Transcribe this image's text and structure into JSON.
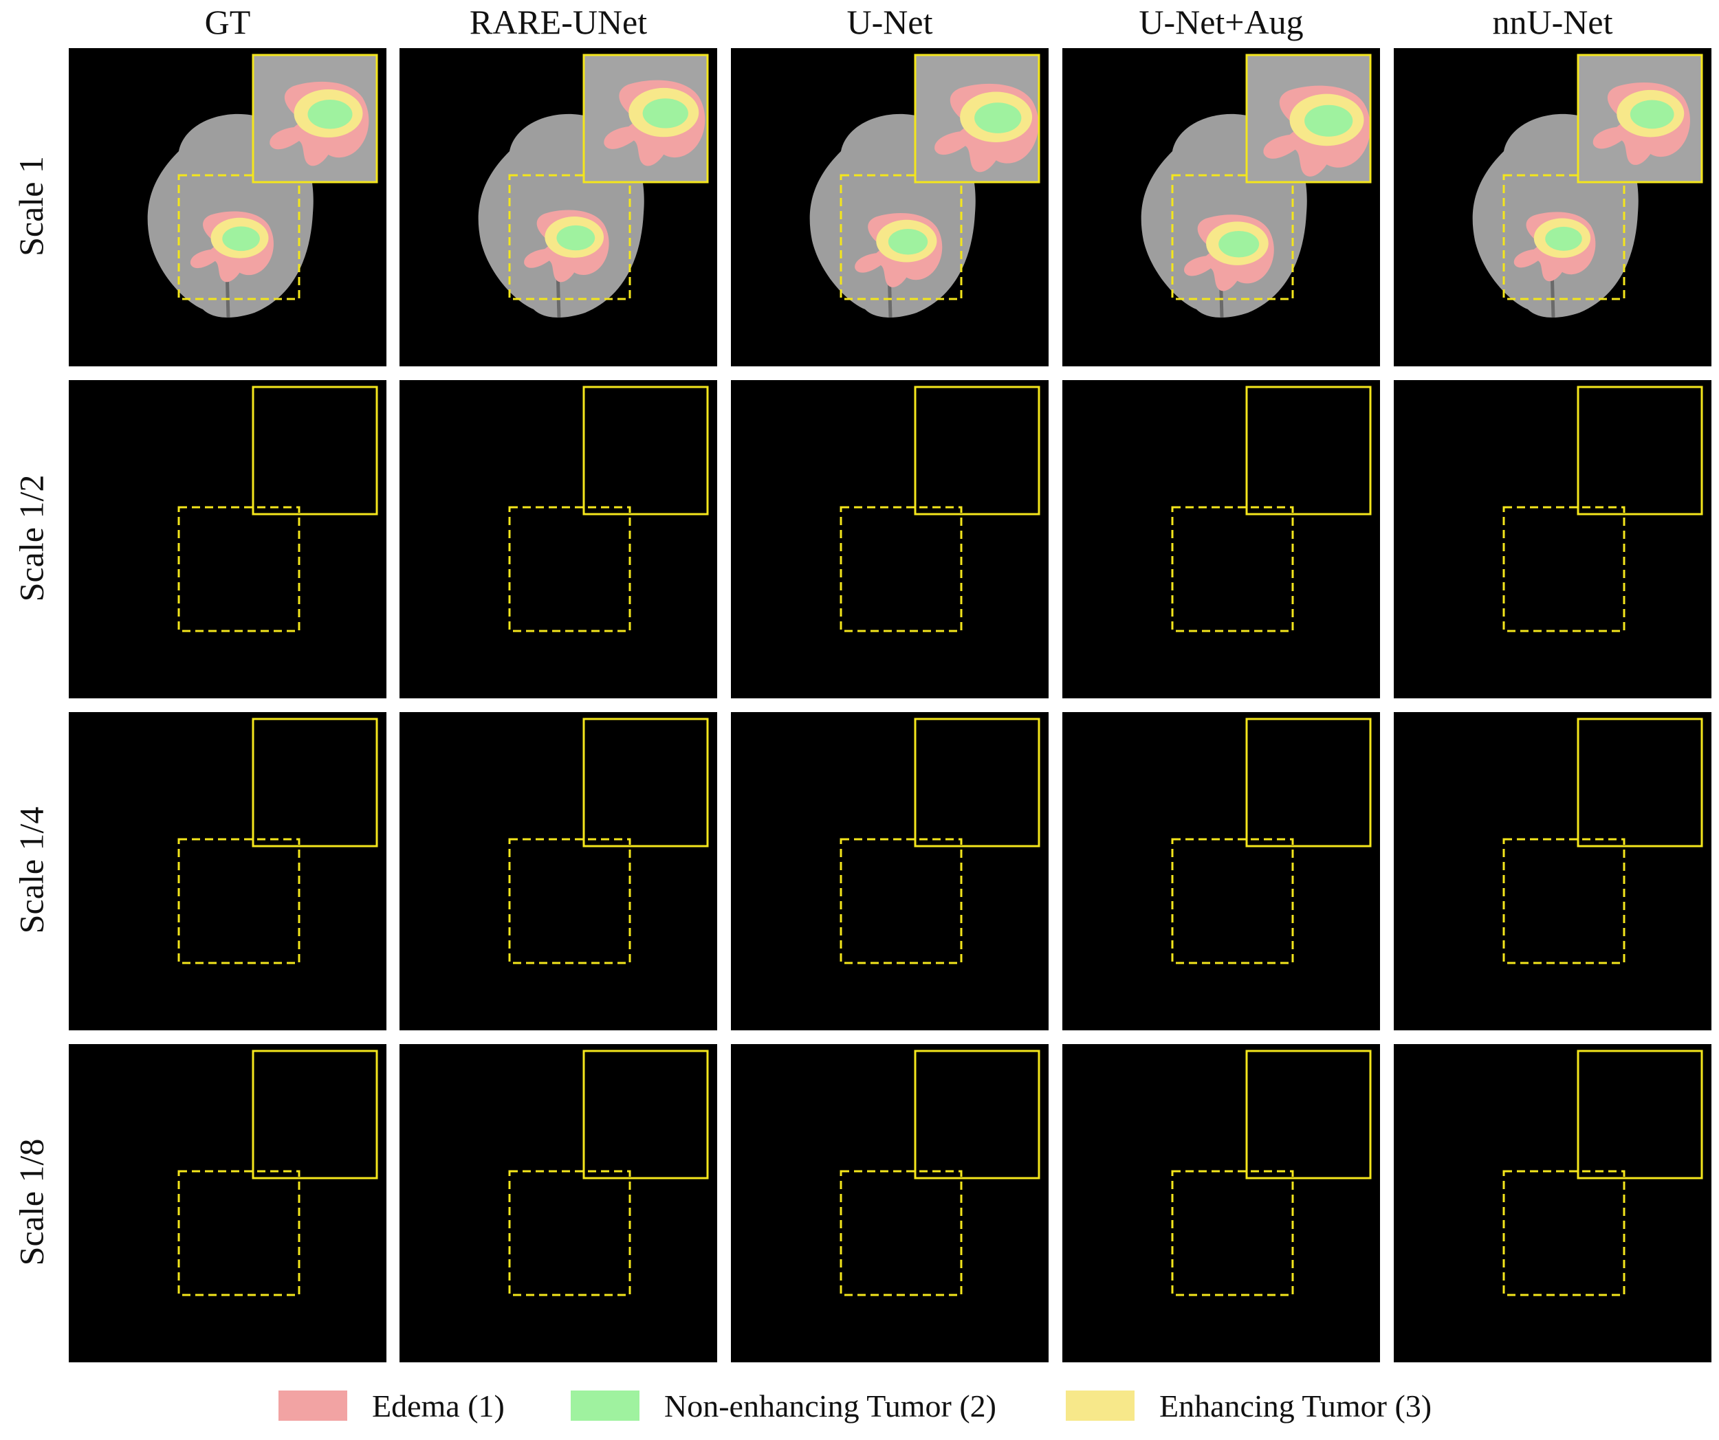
{
  "columns": [
    "GT",
    "RARE-UNet",
    "U-Net",
    "U-Net+Aug",
    "nnU-Net"
  ],
  "rows": [
    "Scale 1",
    "Scale 1/2",
    "Scale 1/4",
    "Scale 1/8"
  ],
  "legend": [
    {
      "label": "Edema (1)",
      "color": "#f2a3a3"
    },
    {
      "label": "Non-enhancing Tumor (2)",
      "color": "#9ff29f"
    },
    {
      "label": "Enhancing Tumor (3)",
      "color": "#f7e88a"
    }
  ],
  "colors": {
    "background": "#000000",
    "brain": "#9e9e9e",
    "edema": "#f2a3a3",
    "non_enhancing": "#9ff29f",
    "enhancing": "#f7e88a",
    "roi_box": "#f4e61c"
  }
}
